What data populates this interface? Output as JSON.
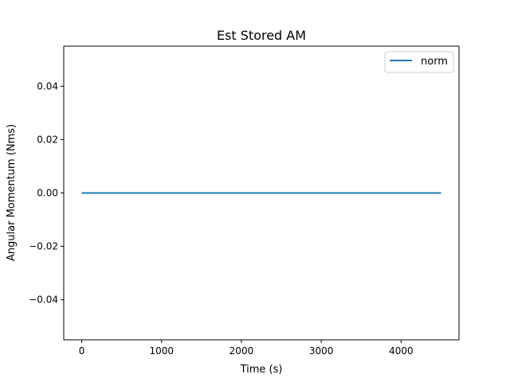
{
  "chart_data": {
    "type": "line",
    "title": "Est Stored AM",
    "xlabel": "Time (s)",
    "ylabel": "Angular Momentum (Nms)",
    "xlim": [
      -225,
      4725
    ],
    "ylim": [
      -0.055,
      0.055
    ],
    "x_ticks": [
      0,
      1000,
      2000,
      3000,
      4000
    ],
    "x_tick_labels": [
      "0",
      "1000",
      "2000",
      "3000",
      "4000"
    ],
    "y_ticks": [
      0.04,
      0.02,
      0.0,
      -0.02,
      -0.04
    ],
    "y_tick_labels": [
      "0.04",
      "0.02",
      "0.00",
      "−0.02",
      "−0.04"
    ],
    "grid": false,
    "legend_position": "top-right",
    "series": [
      {
        "name": "norm",
        "color": "#1f77b4",
        "x": [
          0,
          4500
        ],
        "y": [
          0.0,
          0.0
        ]
      }
    ]
  }
}
